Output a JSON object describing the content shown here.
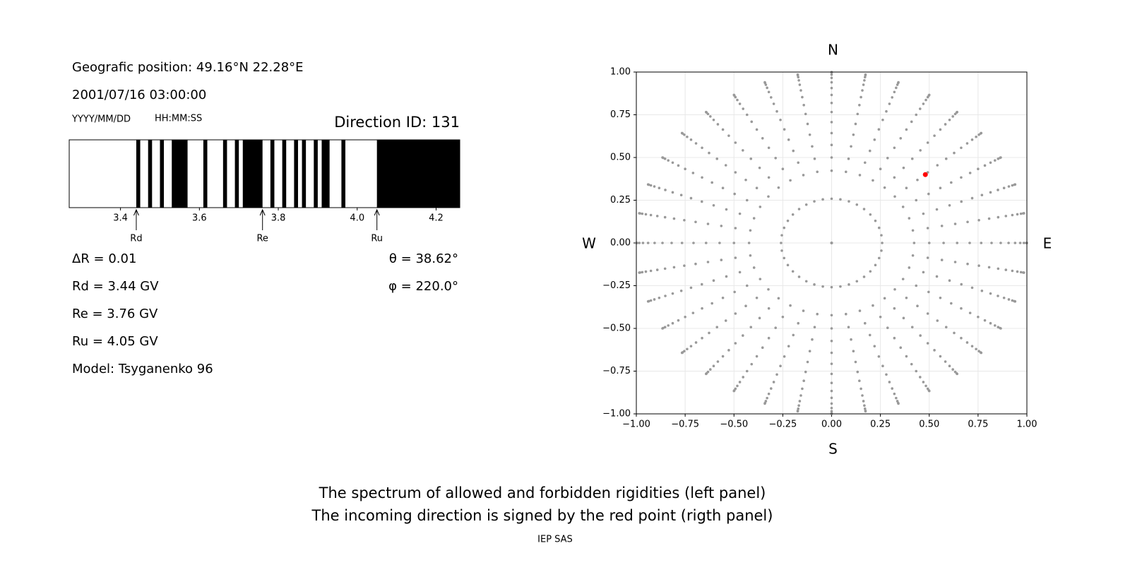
{
  "header": {
    "position": "Geografic position: 49.16°N 22.28°E",
    "datetime": "2001/07/16 03:00:00",
    "date_format": "YYYY/MM/DD",
    "time_format": "HH:MM:SS",
    "direction": "Direction ID: 131"
  },
  "info": {
    "left": [
      "ΔR = 0.01",
      "Rd = 3.44 GV",
      "Re = 3.76 GV",
      "Ru = 4.05 GV",
      "Model: Tsyganenko 96"
    ],
    "right": [
      "θ = 38.62°",
      "φ = 220.0°"
    ]
  },
  "chart_data": [
    {
      "type": "spectrum",
      "xlim": [
        3.27,
        4.26
      ],
      "xticks": [
        3.4,
        3.6,
        3.8,
        {
          "value": 4,
          "label": "4.0"
        },
        4.2
      ],
      "color": "#000000",
      "bands": [
        [
          3.44,
          3.45
        ],
        [
          3.47,
          3.48
        ],
        [
          3.5,
          3.51
        ],
        [
          3.53,
          3.57
        ],
        [
          3.61,
          3.62
        ],
        [
          3.66,
          3.67
        ],
        [
          3.69,
          3.7
        ],
        [
          3.71,
          3.76
        ],
        [
          3.78,
          3.79
        ],
        [
          3.81,
          3.82
        ],
        [
          3.84,
          3.85
        ],
        [
          3.86,
          3.87
        ],
        [
          3.89,
          3.9
        ],
        [
          3.91,
          3.93
        ],
        [
          3.96,
          3.97
        ],
        [
          4.05,
          4.26
        ]
      ],
      "markers": [
        {
          "label": "Rd",
          "value": 3.44
        },
        {
          "label": "Re",
          "value": 3.76
        },
        {
          "label": "Ru",
          "value": 4.05
        }
      ]
    },
    {
      "type": "scatter",
      "xlim": [
        -1,
        1
      ],
      "ylim": [
        -1,
        1
      ],
      "xticks": [
        {
          "value": -1,
          "label": "−1.00"
        },
        {
          "value": -0.75,
          "label": "−0.75"
        },
        {
          "value": -0.5,
          "label": "−0.50"
        },
        {
          "value": -0.25,
          "label": "−0.25"
        },
        {
          "value": 0,
          "label": "0.00"
        },
        {
          "value": 0.25,
          "label": "0.25"
        },
        {
          "value": 0.5,
          "label": "0.50"
        },
        {
          "value": 0.75,
          "label": "0.75"
        },
        {
          "value": 1,
          "label": "1.00"
        }
      ],
      "yticks": [
        {
          "value": -1,
          "label": "−1.00"
        },
        {
          "value": -0.75,
          "label": "−0.75"
        },
        {
          "value": -0.5,
          "label": "−0.50"
        },
        {
          "value": -0.25,
          "label": "−0.25"
        },
        {
          "value": 0,
          "label": "0.00"
        },
        {
          "value": 0.25,
          "label": "0.25"
        },
        {
          "value": 0.5,
          "label": "0.50"
        },
        {
          "value": 0.75,
          "label": "0.75"
        },
        {
          "value": 1,
          "label": "1.00"
        }
      ],
      "grid": true,
      "compass": {
        "north": "N",
        "south": "S",
        "west": "W",
        "east": "E"
      },
      "grid_points": {
        "color": "#999999",
        "zenith": [
          0,
          15,
          25,
          30,
          35,
          40,
          45,
          50,
          55,
          60,
          65,
          70,
          75,
          80,
          85,
          90
        ],
        "azimuth": [
          0,
          10,
          20,
          30,
          40,
          50,
          60,
          70,
          80,
          90,
          100,
          110,
          120,
          130,
          140,
          150,
          160,
          170,
          180,
          190,
          200,
          210,
          220,
          230,
          240,
          250,
          260,
          270,
          280,
          290,
          300,
          310,
          320,
          330,
          340,
          350
        ]
      },
      "point": {
        "x": 0.48,
        "y": 0.4,
        "color": "#ff0000"
      }
    }
  ],
  "caption": [
    "The spectrum of allowed and forbidden rigidities (left panel)",
    "The incoming direction is signed by the red point (rigth panel)"
  ],
  "footer": "IEP SAS"
}
